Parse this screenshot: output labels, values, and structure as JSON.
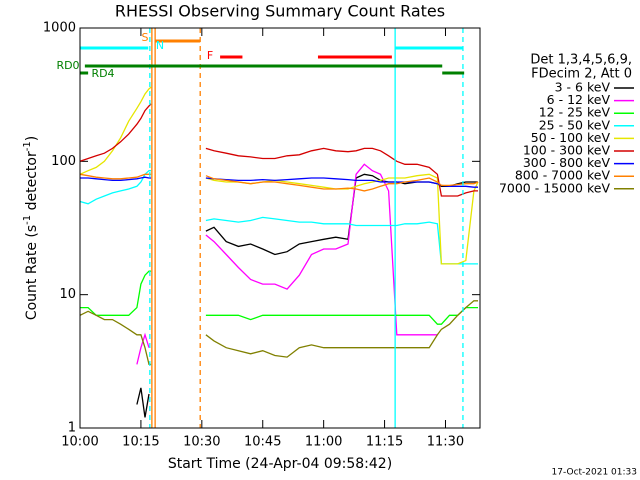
{
  "chart_data": {
    "type": "line",
    "title": "RHESSI Observing Summary Count Rates",
    "x_label": "Start Time (24-Apr-04 09:58:42)",
    "y_label_parts": [
      "Count Rate (s",
      "-1",
      " detector",
      "-1",
      ")"
    ],
    "footer": "17-Oct-2021 01:33",
    "legend_header": [
      "Det 1,3,4,5,6,9,",
      "FDecim 2, Att 0"
    ],
    "legend": "right",
    "log_y": true,
    "xlim": [
      0,
      98.5
    ],
    "xticks": [
      {
        "value": 0,
        "label": "10:00"
      },
      {
        "value": 15,
        "label": "10:15"
      },
      {
        "value": 30,
        "label": "10:30"
      },
      {
        "value": 45,
        "label": "10:45"
      },
      {
        "value": 60,
        "label": "11:00"
      },
      {
        "value": 75,
        "label": "11:15"
      },
      {
        "value": 90,
        "label": "11:30"
      }
    ],
    "ylim": [
      1,
      1000
    ],
    "yticks": [
      1,
      10,
      100,
      1000
    ],
    "x": [
      0,
      2,
      4,
      6,
      8,
      10,
      12,
      14,
      15,
      16,
      17,
      17.5,
      24,
      31,
      33,
      36,
      39,
      42,
      45,
      48,
      51,
      54,
      57,
      60,
      63,
      66,
      68,
      70,
      72,
      74,
      76,
      78,
      80,
      83,
      86,
      88,
      89,
      91,
      93,
      95,
      97,
      98
    ],
    "series": [
      {
        "name": "3 - 6 keV",
        "color": "#000000",
        "values": [
          null,
          null,
          null,
          null,
          null,
          null,
          null,
          1.5,
          2,
          1.2,
          1.8,
          null,
          null,
          30,
          32,
          25,
          23,
          24,
          22,
          20,
          21,
          24,
          25,
          26,
          27,
          26,
          75,
          80,
          78,
          72,
          70,
          70,
          68,
          70,
          70,
          68,
          65,
          65,
          68,
          70,
          70,
          70
        ]
      },
      {
        "name": "6 - 12 keV",
        "color": "#ff00ff",
        "values": [
          null,
          null,
          null,
          null,
          null,
          null,
          null,
          3,
          4,
          5,
          4,
          null,
          null,
          28,
          25,
          20,
          16,
          13,
          12,
          12,
          11,
          14,
          20,
          22,
          22,
          24,
          80,
          95,
          85,
          80,
          60,
          5,
          5,
          5,
          5,
          5,
          null,
          null,
          null,
          null,
          null,
          null
        ]
      },
      {
        "name": "12 - 25 keV",
        "color": "#00ff00",
        "values": [
          8,
          8,
          7,
          7,
          7,
          7,
          7,
          8,
          12,
          14,
          15,
          15,
          null,
          7,
          7,
          7,
          7,
          6.5,
          7,
          7,
          7,
          7,
          7,
          7,
          7,
          7,
          7,
          7,
          7,
          7,
          7,
          7,
          7,
          7,
          7,
          6,
          6,
          7,
          7,
          8,
          8,
          8
        ]
      },
      {
        "name": "25 - 50 keV",
        "color": "#00ffff",
        "values": [
          50,
          48,
          52,
          55,
          58,
          60,
          62,
          65,
          70,
          80,
          85,
          85,
          null,
          36,
          37,
          36,
          35,
          36,
          38,
          37,
          36,
          35,
          35,
          34,
          34,
          34,
          33,
          33,
          33,
          33,
          33,
          33,
          34,
          34,
          35,
          34,
          17,
          17,
          17,
          17,
          17,
          17
        ]
      },
      {
        "name": "50 - 100 keV",
        "color": "#e6e600",
        "values": [
          80,
          85,
          90,
          100,
          120,
          150,
          200,
          250,
          280,
          320,
          350,
          360,
          null,
          75,
          72,
          70,
          70,
          68,
          70,
          72,
          70,
          68,
          66,
          64,
          62,
          62,
          65,
          68,
          70,
          72,
          75,
          75,
          75,
          78,
          80,
          75,
          17,
          17,
          17,
          18,
          60,
          70
        ]
      },
      {
        "name": "100 - 300 keV",
        "color": "#d40000",
        "values": [
          100,
          105,
          110,
          115,
          125,
          140,
          160,
          190,
          210,
          240,
          260,
          270,
          null,
          125,
          120,
          115,
          110,
          108,
          105,
          105,
          110,
          112,
          120,
          125,
          120,
          118,
          120,
          125,
          125,
          120,
          110,
          100,
          95,
          95,
          90,
          80,
          55,
          55,
          55,
          58,
          60,
          60
        ]
      },
      {
        "name": "300 - 800 keV",
        "color": "#0000ff",
        "values": [
          75,
          75,
          74,
          73,
          72,
          72,
          73,
          74,
          75,
          76,
          75,
          75,
          null,
          75,
          74,
          73,
          72,
          72,
          73,
          72,
          73,
          74,
          75,
          75,
          74,
          73,
          72,
          72,
          72,
          70,
          70,
          70,
          70,
          70,
          70,
          68,
          66,
          65,
          65,
          65,
          64,
          64
        ]
      },
      {
        "name": "800 - 7000 keV",
        "color": "#ff8000",
        "values": [
          80,
          78,
          76,
          75,
          74,
          74,
          75,
          76,
          78,
          80,
          80,
          80,
          null,
          78,
          74,
          72,
          70,
          68,
          70,
          70,
          68,
          66,
          64,
          62,
          62,
          63,
          62,
          60,
          62,
          65,
          68,
          68,
          70,
          72,
          75,
          70,
          66,
          66,
          67,
          68,
          68,
          70
        ]
      },
      {
        "name": "7000 - 15000 keV",
        "color": "#808000",
        "values": [
          7,
          7.5,
          7,
          6.5,
          6.5,
          6,
          5.5,
          5,
          5,
          4,
          3,
          3,
          null,
          5,
          4.5,
          4,
          3.8,
          3.6,
          3.8,
          3.5,
          3.4,
          4,
          4.2,
          4,
          4,
          4,
          4,
          4,
          4,
          4,
          4,
          4,
          4,
          4,
          4,
          5,
          5.5,
          6,
          7,
          8,
          9,
          9
        ]
      }
    ],
    "flags": [
      {
        "label": "S",
        "color": "#ff8000",
        "intervals": [
          [
            18.5,
            29.6
          ]
        ]
      },
      {
        "label": "N",
        "color": "#00ffff",
        "intervals": [
          [
            0,
            16.8
          ],
          [
            77.6,
            94.3
          ]
        ]
      },
      {
        "label": "F",
        "color": "#ff0000",
        "intervals": [
          [
            34.5,
            40
          ],
          [
            58.6,
            76.8
          ]
        ]
      },
      {
        "label": "RD0",
        "color": "#008000",
        "intervals": [
          [
            1.2,
            89.2
          ]
        ]
      },
      {
        "label": "RD4",
        "color": "#008000",
        "intervals": [
          [
            0,
            2
          ],
          [
            89.2,
            94.6
          ]
        ]
      }
    ],
    "vlines": [
      {
        "x": 17.2,
        "color": "#00ffff",
        "dashed": true
      },
      {
        "x": 17.7,
        "color": "#ff8000",
        "dashed": false
      },
      {
        "x": 18.5,
        "color": "#ff8000",
        "dashed": false
      },
      {
        "x": 29.6,
        "color": "#ff8000",
        "dashed": true
      },
      {
        "x": 77.6,
        "color": "#00ffff",
        "dashed": false
      },
      {
        "x": 94.3,
        "color": "#00ffff",
        "dashed": true
      }
    ]
  }
}
